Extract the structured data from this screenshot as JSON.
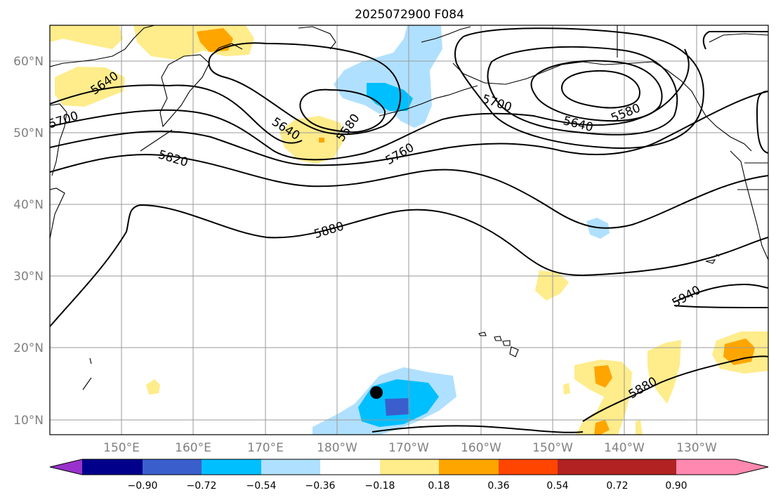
{
  "title": "2025072900 F084",
  "lat_labels": [
    "60°N",
    "50°N",
    "40°N",
    "30°N",
    "20°N",
    "10°N"
  ],
  "lon_labels": [
    "150°E",
    "160°E",
    "170°E",
    "180°W",
    "170°W",
    "160°W",
    "150°W",
    "140°W",
    "130°W"
  ],
  "contour_labels": [
    "5640",
    "5700",
    "5820",
    "5640",
    "5580",
    "5760",
    "5880",
    "5700",
    "5640",
    "5580",
    "5940",
    "5880"
  ],
  "colorbar": {
    "ticks": [
      "−0.90",
      "−0.72",
      "−0.54",
      "−0.36",
      "−0.18",
      "0.18",
      "0.36",
      "0.54",
      "0.72",
      "0.90"
    ],
    "colors": [
      "#9932cc",
      "#00008b",
      "#3a5fcd",
      "#00bfff",
      "#b0e0ff",
      "#ffffff",
      "#ffec8b",
      "#ffa500",
      "#ff4500",
      "#b22222",
      "#ff88b0"
    ]
  },
  "marker": "storm-position-dot"
}
